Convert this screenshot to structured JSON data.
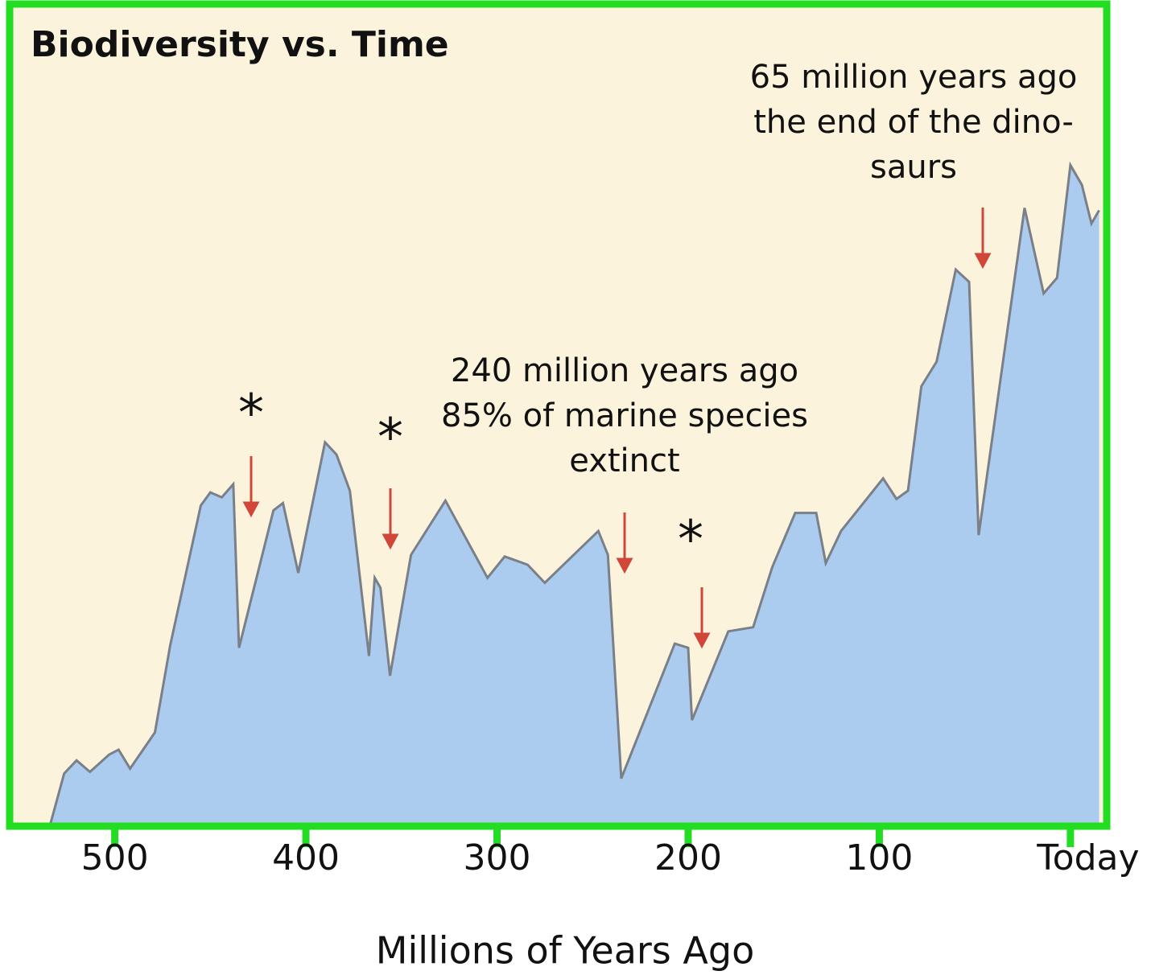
{
  "chart_data": {
    "type": "area",
    "title": "Biodiversity vs. Time",
    "x_label": "Millions of Years Ago",
    "x": [
      534,
      526.5,
      520,
      513,
      503,
      498,
      492,
      479,
      471,
      455,
      450,
      444,
      438,
      435,
      417,
      412,
      404,
      390,
      384,
      377,
      367,
      364,
      361,
      356,
      345,
      327,
      305,
      296,
      284,
      275,
      247,
      242,
      235,
      207,
      200,
      198,
      179,
      166,
      156,
      144,
      133,
      128,
      120,
      98,
      91,
      85,
      78,
      70,
      60,
      53,
      48,
      24,
      14,
      7,
      0,
      -6,
      -11,
      -15
    ],
    "values": [
      0,
      6.4,
      8,
      6.6,
      8.7,
      9.3,
      7,
      11.4,
      22,
      39,
      40.6,
      40,
      41.6,
      21.7,
      38.4,
      39.3,
      30.8,
      46.7,
      45.2,
      40.8,
      20.7,
      30.2,
      29,
      18.3,
      33,
      39.6,
      30.2,
      32.8,
      31.8,
      29.6,
      35.9,
      33,
      5.8,
      22.2,
      21.7,
      12.9,
      23.7,
      24.2,
      31.5,
      38.1,
      38.1,
      32,
      35.9,
      42.3,
      39.8,
      40.8,
      53.5,
      56.5,
      67.7,
      66.2,
      35.4,
      75.2,
      64.8,
      66.7,
      80.4,
      78,
      73.3,
      74.9
    ],
    "color": "#abcbef",
    "line_color": "#7a7f88",
    "background": "#fbf3dc",
    "frame_color": "#22dd22",
    "xlim": [
      555,
      -19
    ],
    "ylim": [
      0,
      100
    ],
    "xticks": [
      500,
      400,
      300,
      200,
      100,
      {
        "value": 0,
        "label": "Today"
      }
    ],
    "annotations": [
      [
        "65 million years ago",
        "the end of the dino-",
        "saurs"
      ],
      [
        "240 million years ago",
        "85% of marine species",
        "extinct"
      ]
    ],
    "markers": [
      "*",
      "*",
      "*"
    ]
  }
}
